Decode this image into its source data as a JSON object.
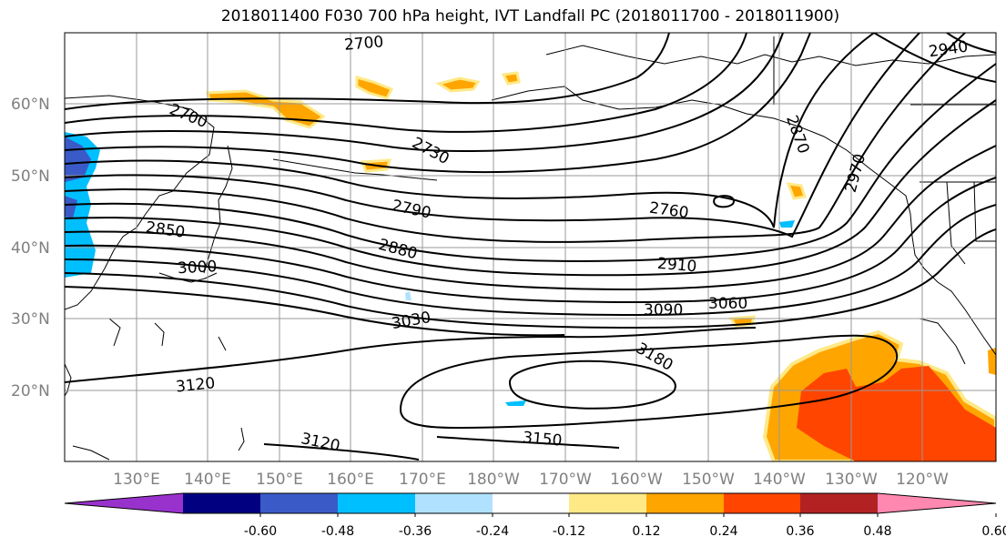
{
  "title": "2018011400 F030 700 hPa height, IVT Landfall PC (2018011700 - 2018011900)",
  "lat_labels": [
    "60°N",
    "50°N",
    "40°N",
    "30°N",
    "20°N"
  ],
  "lon_labels": [
    "130°E",
    "140°E",
    "150°E",
    "160°E",
    "170°E",
    "180°W",
    "170°W",
    "160°W",
    "150°W",
    "140°W",
    "130°W",
    "120°W"
  ],
  "contour_labels": [
    "2700",
    "2700",
    "2730",
    "2790",
    "2850",
    "2880",
    "2910",
    "2760",
    "2870",
    "2940",
    "2970",
    "3000",
    "3030",
    "3060",
    "3090",
    "3120",
    "3120",
    "3150",
    "3180"
  ],
  "colorbar": {
    "colors": [
      "#9932CC",
      "#000080",
      "#3A5BC7",
      "#00BFFF",
      "#B0E2FF",
      "#FFFFFF",
      "#FFE987",
      "#FFA500",
      "#FF4500",
      "#B22222",
      "#FF88B0"
    ],
    "tick_labels": [
      "-0.60",
      "-0.48",
      "-0.36",
      "-0.24",
      "-0.12",
      "0.12",
      "0.24",
      "0.36",
      "0.48",
      "0.60"
    ]
  },
  "colors": {
    "contour": "#000000",
    "grid": "#999999",
    "tick_text": "#808080"
  }
}
